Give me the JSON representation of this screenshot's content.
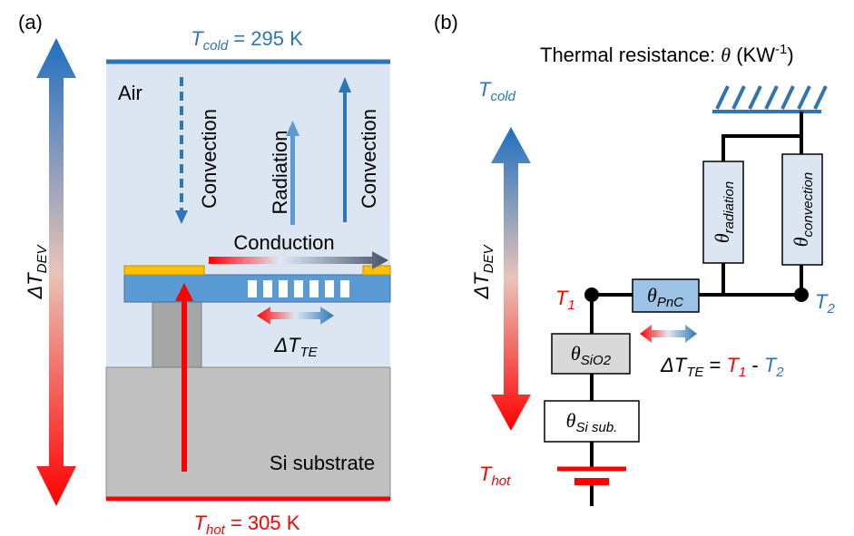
{
  "panel_a": {
    "label": "(a)",
    "t_cold": {
      "symbol": "T",
      "sub": "cold",
      "rest": " = 295 K"
    },
    "air": "Air",
    "convection_down": "Convection",
    "radiation": "Radiation",
    "convection_up": "Convection",
    "conduction": "Conduction",
    "delta_t_dev": {
      "symbol": "ΔT",
      "sub": "DEV"
    },
    "delta_t_te": {
      "symbol": "ΔT",
      "sub": "TE"
    },
    "substrate": "Si substrate",
    "t_hot": {
      "symbol": "T",
      "sub": "hot",
      "rest": " = 305 K"
    }
  },
  "panel_b": {
    "label": "(b)",
    "title": {
      "prefix": "Thermal resistance: ",
      "symbol": "θ",
      "unit": " (KW",
      "exponent": "-1",
      "close": ")"
    },
    "t_cold": {
      "symbol": "T",
      "sub": "cold"
    },
    "delta_t_dev": {
      "symbol": "ΔT",
      "sub": "DEV"
    },
    "t1": {
      "symbol": "T",
      "sub": "1"
    },
    "t2": {
      "symbol": "T",
      "sub": "2"
    },
    "theta_pnc": {
      "symbol": "θ",
      "sub": "PnC"
    },
    "theta_radiation": {
      "symbol": "θ",
      "sub": "radiation"
    },
    "theta_convection": {
      "symbol": "θ",
      "sub": "convection"
    },
    "theta_sio2": {
      "symbol": "θ",
      "sub": "SiO2"
    },
    "theta_si_sub": {
      "symbol": "θ",
      "sub": "Si sub."
    },
    "delta_t_te_eq": {
      "symbol": "ΔT",
      "sub": "TE",
      "eq": " = ",
      "t1": "T",
      "t1_sub": "1",
      "minus": " - ",
      "t2": "T",
      "t2_sub": "2"
    },
    "t_hot": {
      "symbol": "T",
      "sub": "hot"
    }
  }
}
